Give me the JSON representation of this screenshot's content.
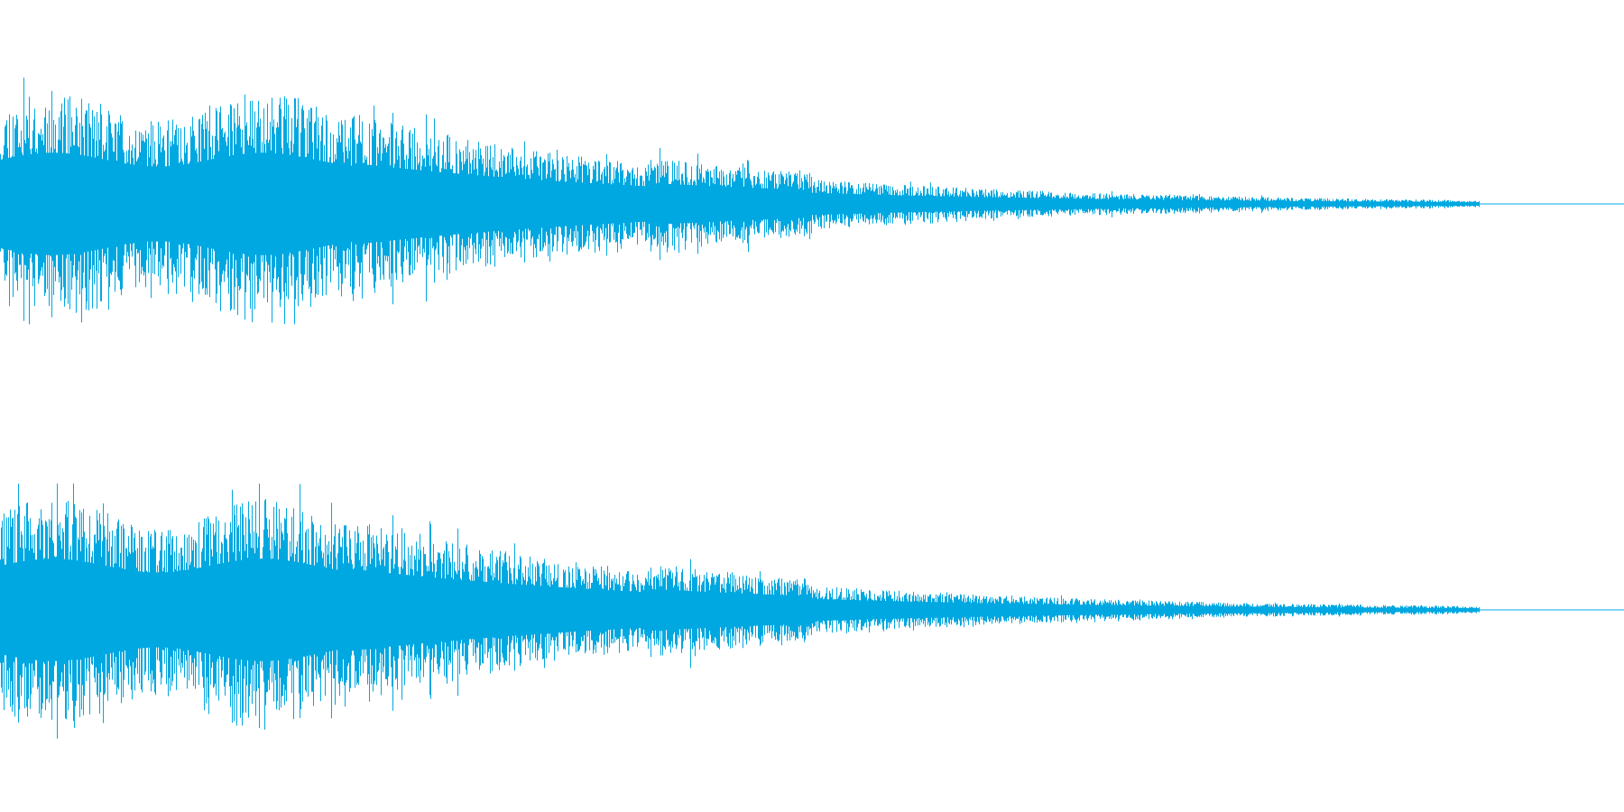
{
  "waveform": {
    "color": "#00a8e1",
    "background": "#ffffff",
    "channels": [
      {
        "id": "left",
        "seed": 11
      },
      {
        "id": "right",
        "seed": 29
      }
    ]
  }
}
